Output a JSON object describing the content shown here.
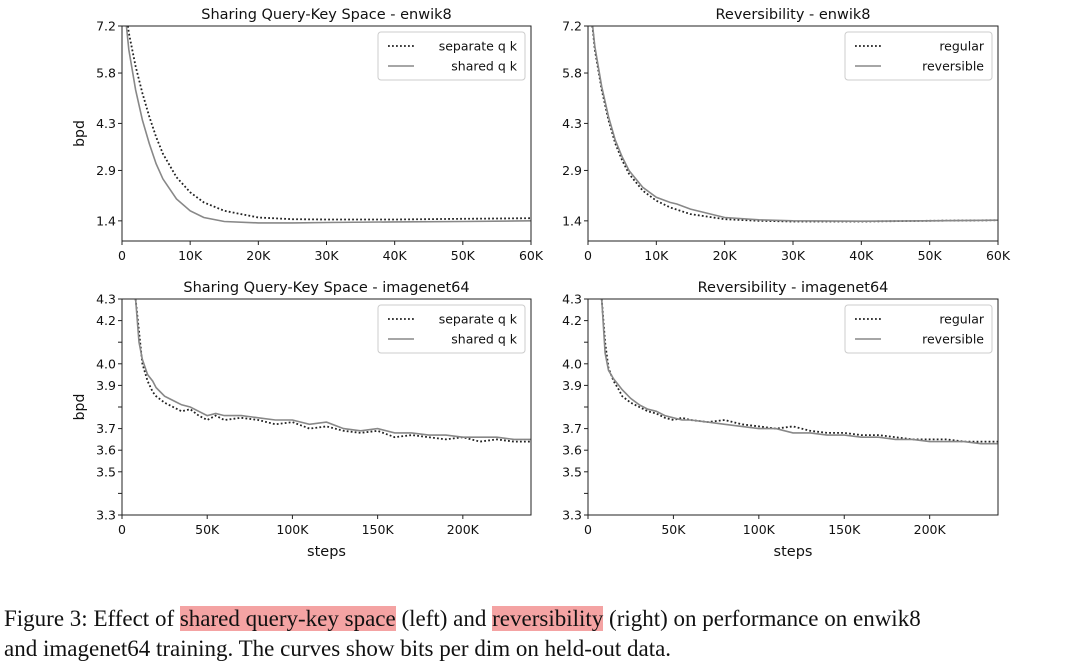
{
  "chart_data": [
    {
      "type": "line",
      "title": "Sharing Query-Key Space - enwik8",
      "xlabel": "",
      "ylabel": "bpd",
      "xlim": [
        0,
        60000
      ],
      "ylim": [
        0.8,
        7.2
      ],
      "xticks": [
        0,
        10000,
        20000,
        30000,
        40000,
        50000,
        60000
      ],
      "xtick_labels": [
        "0",
        "10K",
        "20K",
        "30K",
        "40K",
        "50K",
        "60K"
      ],
      "yticks": [
        1.4,
        2.9,
        4.3,
        5.8,
        7.2
      ],
      "ytick_labels": [
        "1.4",
        "2.9",
        "4.3",
        "5.8",
        "7.2"
      ],
      "legend": "top-right",
      "series": [
        {
          "name": "separate q k",
          "style": "dotted",
          "color": "#222222",
          "x": [
            0,
            1000,
            2000,
            3000,
            4000,
            5000,
            6000,
            8000,
            10000,
            12000,
            15000,
            20000,
            25000,
            30000,
            40000,
            50000,
            60000
          ],
          "y": [
            8.5,
            7.0,
            6.0,
            5.2,
            4.5,
            3.9,
            3.4,
            2.7,
            2.25,
            1.95,
            1.7,
            1.5,
            1.45,
            1.44,
            1.44,
            1.46,
            1.48
          ]
        },
        {
          "name": "shared q k",
          "style": "solid",
          "color": "#888888",
          "x": [
            0,
            1000,
            2000,
            3000,
            4000,
            5000,
            6000,
            8000,
            10000,
            12000,
            15000,
            20000,
            25000,
            30000,
            40000,
            50000,
            60000
          ],
          "y": [
            8.5,
            6.5,
            5.3,
            4.4,
            3.7,
            3.1,
            2.65,
            2.05,
            1.7,
            1.5,
            1.38,
            1.34,
            1.34,
            1.35,
            1.37,
            1.38,
            1.4
          ]
        }
      ]
    },
    {
      "type": "line",
      "title": "Reversibility - enwik8",
      "xlabel": "",
      "ylabel": "",
      "xlim": [
        0,
        60000
      ],
      "ylim": [
        0.8,
        7.2
      ],
      "xticks": [
        0,
        10000,
        20000,
        30000,
        40000,
        50000,
        60000
      ],
      "xtick_labels": [
        "0",
        "10K",
        "20K",
        "30K",
        "40K",
        "50K",
        "60K"
      ],
      "yticks": [
        1.4,
        2.9,
        4.3,
        5.8,
        7.2
      ],
      "ytick_labels": [
        "1.4",
        "2.9",
        "4.3",
        "5.8",
        "7.2"
      ],
      "legend": "top-right",
      "series": [
        {
          "name": "regular",
          "style": "dotted",
          "color": "#222222",
          "x": [
            0,
            1000,
            2000,
            3000,
            4000,
            5000,
            6000,
            8000,
            10000,
            12000,
            15000,
            20000,
            25000,
            30000,
            40000,
            50000,
            60000
          ],
          "y": [
            8.5,
            6.5,
            5.3,
            4.4,
            3.7,
            3.2,
            2.8,
            2.3,
            2.0,
            1.8,
            1.6,
            1.45,
            1.4,
            1.38,
            1.38,
            1.4,
            1.42
          ]
        },
        {
          "name": "reversible",
          "style": "solid",
          "color": "#888888",
          "x": [
            0,
            1000,
            2000,
            3000,
            4000,
            5000,
            6000,
            8000,
            10000,
            12000,
            13000,
            15000,
            20000,
            25000,
            30000,
            40000,
            50000,
            60000
          ],
          "y": [
            8.5,
            6.6,
            5.4,
            4.5,
            3.8,
            3.3,
            2.9,
            2.4,
            2.1,
            1.95,
            1.9,
            1.75,
            1.5,
            1.43,
            1.4,
            1.39,
            1.4,
            1.42
          ]
        }
      ]
    },
    {
      "type": "line",
      "title": "Sharing Query-Key Space - imagenet64",
      "xlabel": "steps",
      "ylabel": "bpd",
      "xlim": [
        0,
        240000
      ],
      "ylim": [
        3.3,
        4.3
      ],
      "xticks": [
        0,
        50000,
        100000,
        150000,
        200000
      ],
      "xtick_labels": [
        "0",
        "50K",
        "100K",
        "150K",
        "200K"
      ],
      "yticks": [
        3.3,
        3.4,
        3.5,
        3.6,
        3.7,
        3.8,
        3.9,
        4.0,
        4.1,
        4.2,
        4.3
      ],
      "ytick_labels": [
        "3.3",
        "",
        "3.5",
        "3.6",
        "3.7",
        "",
        "3.9",
        "4.0",
        "",
        "4.2",
        "4.3"
      ],
      "legend": "top-right",
      "series": [
        {
          "name": "separate q k",
          "style": "dotted",
          "color": "#222222",
          "x": [
            8000,
            10000,
            12000,
            15000,
            18000,
            20000,
            25000,
            30000,
            35000,
            40000,
            45000,
            50000,
            55000,
            60000,
            70000,
            80000,
            90000,
            100000,
            110000,
            120000,
            130000,
            140000,
            150000,
            160000,
            170000,
            180000,
            190000,
            200000,
            210000,
            220000,
            230000,
            240000
          ],
          "y": [
            4.3,
            4.15,
            4.0,
            3.92,
            3.87,
            3.85,
            3.82,
            3.8,
            3.78,
            3.79,
            3.76,
            3.74,
            3.76,
            3.74,
            3.75,
            3.74,
            3.72,
            3.73,
            3.7,
            3.71,
            3.69,
            3.68,
            3.69,
            3.66,
            3.67,
            3.66,
            3.65,
            3.66,
            3.64,
            3.65,
            3.64,
            3.64
          ]
        },
        {
          "name": "shared q k",
          "style": "solid",
          "color": "#888888",
          "x": [
            8000,
            10000,
            12000,
            15000,
            18000,
            20000,
            25000,
            30000,
            35000,
            40000,
            45000,
            50000,
            55000,
            60000,
            70000,
            80000,
            90000,
            100000,
            110000,
            120000,
            130000,
            140000,
            150000,
            160000,
            170000,
            180000,
            190000,
            200000,
            210000,
            220000,
            230000,
            240000
          ],
          "y": [
            4.3,
            4.1,
            4.02,
            3.95,
            3.92,
            3.89,
            3.85,
            3.83,
            3.81,
            3.8,
            3.78,
            3.76,
            3.77,
            3.76,
            3.76,
            3.75,
            3.74,
            3.74,
            3.72,
            3.73,
            3.7,
            3.69,
            3.7,
            3.68,
            3.68,
            3.67,
            3.67,
            3.66,
            3.66,
            3.66,
            3.65,
            3.65
          ]
        }
      ]
    },
    {
      "type": "line",
      "title": "Reversibility - imagenet64",
      "xlabel": "steps",
      "ylabel": "",
      "xlim": [
        0,
        240000
      ],
      "ylim": [
        3.3,
        4.3
      ],
      "xticks": [
        0,
        50000,
        100000,
        150000,
        200000
      ],
      "xtick_labels": [
        "0",
        "50K",
        "100K",
        "150K",
        "200K"
      ],
      "yticks": [
        3.3,
        3.4,
        3.5,
        3.6,
        3.7,
        3.8,
        3.9,
        4.0,
        4.1,
        4.2,
        4.3
      ],
      "ytick_labels": [
        "3.3",
        "",
        "3.5",
        "3.6",
        "3.7",
        "",
        "3.9",
        "4.0",
        "",
        "4.2",
        "4.3"
      ],
      "legend": "top-right",
      "series": [
        {
          "name": "regular",
          "style": "dotted",
          "color": "#222222",
          "x": [
            8000,
            10000,
            12000,
            15000,
            18000,
            20000,
            25000,
            30000,
            35000,
            40000,
            45000,
            50000,
            55000,
            60000,
            70000,
            80000,
            90000,
            100000,
            110000,
            120000,
            130000,
            140000,
            150000,
            160000,
            170000,
            180000,
            190000,
            200000,
            210000,
            220000,
            230000,
            240000
          ],
          "y": [
            4.3,
            4.1,
            3.98,
            3.92,
            3.88,
            3.85,
            3.82,
            3.8,
            3.78,
            3.77,
            3.75,
            3.74,
            3.75,
            3.74,
            3.73,
            3.74,
            3.72,
            3.71,
            3.7,
            3.71,
            3.69,
            3.68,
            3.68,
            3.67,
            3.67,
            3.66,
            3.65,
            3.65,
            3.65,
            3.64,
            3.64,
            3.64
          ]
        },
        {
          "name": "reversible",
          "style": "solid",
          "color": "#888888",
          "x": [
            8000,
            10000,
            12000,
            15000,
            18000,
            20000,
            25000,
            30000,
            35000,
            40000,
            45000,
            50000,
            55000,
            60000,
            70000,
            80000,
            90000,
            100000,
            110000,
            120000,
            130000,
            140000,
            150000,
            160000,
            170000,
            180000,
            190000,
            200000,
            210000,
            220000,
            230000,
            240000
          ],
          "y": [
            4.3,
            4.05,
            3.97,
            3.93,
            3.9,
            3.88,
            3.84,
            3.81,
            3.79,
            3.78,
            3.76,
            3.75,
            3.74,
            3.74,
            3.73,
            3.72,
            3.71,
            3.7,
            3.7,
            3.68,
            3.68,
            3.67,
            3.67,
            3.66,
            3.66,
            3.65,
            3.65,
            3.64,
            3.64,
            3.64,
            3.63,
            3.63
          ]
        }
      ]
    }
  ],
  "caption": {
    "prefix": "Figure 3: Effect of ",
    "highlight1": "shared query-key space",
    "middle1": " (left) and ",
    "highlight2": "reversibility",
    "middle2": " (right) on performance on enwik8",
    "line2": "and imagenet64 training. The curves show bits per dim on held-out data.",
    "highlight_color": "#f4a3a3"
  }
}
